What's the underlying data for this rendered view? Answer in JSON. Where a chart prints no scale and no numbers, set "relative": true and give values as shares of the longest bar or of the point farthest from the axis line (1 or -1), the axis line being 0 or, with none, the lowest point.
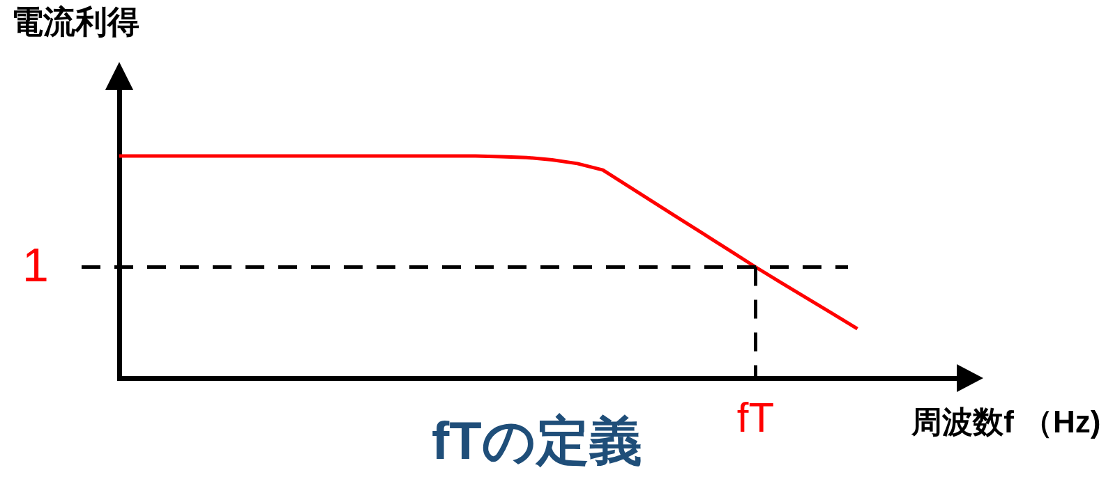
{
  "chart_data": {
    "type": "line",
    "title": "fTの定義",
    "xlabel": "周波数f （Hz)",
    "ylabel": "電流利得",
    "relative": true,
    "categories": [
      null,
      null,
      null,
      null,
      null,
      null,
      null,
      null,
      null,
      null,
      null,
      null,
      null,
      null,
      null,
      null,
      null,
      null,
      null,
      null,
      null,
      null,
      null,
      null,
      null,
      null,
      null,
      null,
      null,
      null,
      null,
      null,
      null,
      null
    ],
    "series": [
      {
        "color": "#ff0000",
        "values": [
          1,
          1,
          1,
          1,
          1,
          1,
          1,
          1,
          1,
          1,
          1,
          1,
          1,
          1,
          1,
          0.997,
          0.993,
          0.983,
          0.966,
          0.937,
          0.864,
          0.791,
          0.718,
          0.646,
          0.573,
          0.5,
          0.43,
          0.361,
          0.292,
          0.222,
          null,
          null,
          null,
          null
        ]
      }
    ],
    "ref_lines": [
      {
        "axis": "y",
        "value": 0.5,
        "label": "1",
        "color": "#000000",
        "line_style": "dashed"
      },
      {
        "axis": "x",
        "value": "fT",
        "color": "#000000",
        "line_style": "dashed"
      }
    ]
  }
}
